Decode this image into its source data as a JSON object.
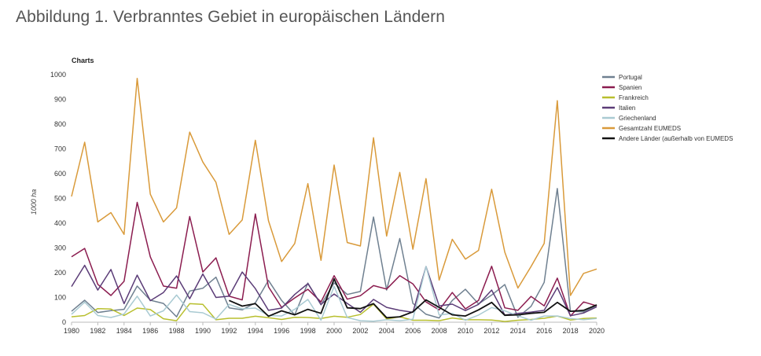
{
  "page_title": "Abbildung 1. Verbranntes Gebiet in europäischen Ländern",
  "chart_data": {
    "type": "line",
    "title": "Charts",
    "xlabel": "",
    "ylabel": "1000 ha",
    "xlim": [
      1980,
      2020
    ],
    "ylim": [
      0,
      1000
    ],
    "x_ticks": [
      1980,
      1982,
      1984,
      1986,
      1988,
      1990,
      1992,
      1994,
      1996,
      1998,
      2000,
      2002,
      2004,
      2006,
      2008,
      2010,
      2012,
      2014,
      2016,
      2018,
      2020
    ],
    "x_tick_labels": [
      "1980",
      "1982",
      "1984",
      "1986",
      "1988",
      "1990",
      "1992",
      "1994",
      "1996",
      "1998",
      "2000",
      "2002",
      "2004",
      "2006",
      "2008",
      "2010",
      "2012",
      "2014",
      "2016",
      "2018",
      "2020"
    ],
    "y_ticks": [
      0,
      100,
      200,
      300,
      400,
      500,
      600,
      700,
      800,
      900,
      1000
    ],
    "y_tick_labels": [
      "0",
      "100",
      "200",
      "300",
      "400",
      "500",
      "600",
      "700",
      "800",
      "900",
      "1000"
    ],
    "grid": false,
    "legend_position": "right",
    "x": [
      1980,
      1981,
      1982,
      1983,
      1984,
      1985,
      1986,
      1987,
      1988,
      1989,
      1990,
      1991,
      1992,
      1993,
      1994,
      1995,
      1996,
      1997,
      1998,
      1999,
      2000,
      2001,
      2002,
      2003,
      2004,
      2005,
      2006,
      2007,
      2008,
      2009,
      2010,
      2011,
      2012,
      2013,
      2014,
      2015,
      2016,
      2017,
      2018,
      2019,
      2020
    ],
    "series": [
      {
        "name": "Portugal",
        "color": "#6f8090",
        "values": [
          44,
          89,
          39,
          47,
          52,
          146,
          89,
          76,
          22,
          126,
          137,
          182,
          58,
          50,
          78,
          169,
          88,
          30,
          158,
          70,
          159,
          112,
          124,
          425,
          130,
          338,
          76,
          32,
          17,
          88,
          133,
          74,
          110,
          152,
          20,
          64,
          161,
          540,
          44,
          42,
          67
        ]
      },
      {
        "name": "Spanien",
        "color": "#8b1c4f",
        "values": [
          264,
          298,
          153,
          108,
          165,
          484,
          264,
          146,
          137,
          427,
          203,
          260,
          105,
          90,
          437,
          143,
          60,
          98,
          133,
          82,
          188,
          93,
          107,
          148,
          134,
          188,
          155,
          82,
          50,
          120,
          54,
          88,
          226,
          58,
          48,
          104,
          66,
          178,
          25,
          82,
          66
        ]
      },
      {
        "name": "Frankreich",
        "color": "#b8bf2e",
        "values": [
          22,
          27,
          55,
          53,
          27,
          57,
          51,
          14,
          6,
          75,
          72,
          10,
          16,
          16,
          24,
          18,
          11,
          20,
          19,
          15,
          24,
          20,
          31,
          73,
          13,
          22,
          8,
          8,
          6,
          17,
          10,
          10,
          9,
          3,
          8,
          11,
          16,
          25,
          9,
          15,
          17
        ]
      },
      {
        "name": "Italien",
        "color": "#5b3c77",
        "values": [
          144,
          230,
          130,
          213,
          75,
          190,
          87,
          120,
          187,
          95,
          195,
          100,
          105,
          203,
          136,
          48,
          57,
          112,
          156,
          72,
          114,
          76,
          40,
          92,
          60,
          48,
          40,
          225,
          66,
          73,
          47,
          72,
          130,
          29,
          36,
          41,
          48,
          140,
          26,
          37,
          62
        ]
      },
      {
        "name": "Griechenland",
        "color": "#a9cad2",
        "values": [
          32,
          81,
          27,
          19,
          33,
          105,
          25,
          46,
          110,
          43,
          38,
          13,
          72,
          54,
          57,
          27,
          25,
          52,
          92,
          8,
          145,
          19,
          6,
          4,
          10,
          6,
          12,
          225,
          29,
          36,
          8,
          29,
          59,
          46,
          26,
          8,
          25,
          25,
          15,
          10,
          15
        ]
      },
      {
        "name": "Gesamtzahl EUMEDS",
        "color": "#d99a3a",
        "values": [
          508,
          727,
          405,
          443,
          355,
          985,
          517,
          405,
          462,
          768,
          647,
          565,
          355,
          413,
          735,
          410,
          245,
          318,
          560,
          250,
          635,
          322,
          308,
          745,
          348,
          605,
          295,
          580,
          170,
          335,
          255,
          290,
          537,
          283,
          138,
          225,
          318,
          895,
          108,
          197,
          215
        ]
      },
      {
        "name": "Andere Länder (außerhalb von EUMEDS",
        "color": "#111111",
        "values": [
          null,
          null,
          null,
          null,
          null,
          null,
          null,
          null,
          null,
          null,
          null,
          null,
          88,
          65,
          75,
          24,
          46,
          30,
          52,
          36,
          175,
          58,
          55,
          75,
          18,
          22,
          42,
          90,
          60,
          30,
          25,
          50,
          80,
          28,
          30,
          36,
          40,
          80,
          44,
          48,
          70
        ]
      }
    ]
  }
}
